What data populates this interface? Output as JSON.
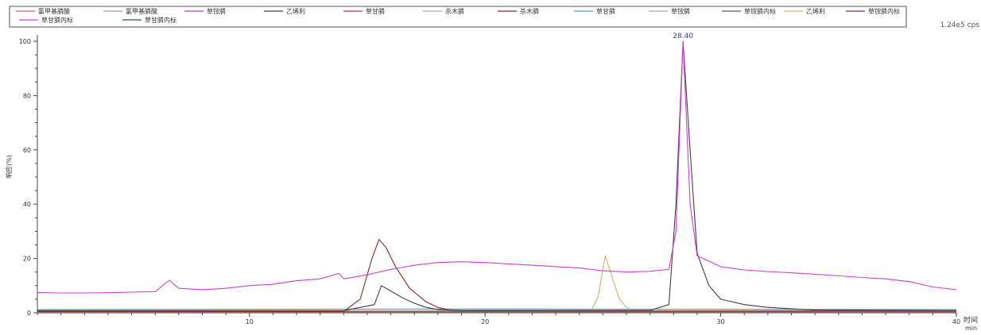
{
  "chart_data": {
    "type": "line",
    "title": "",
    "xlabel": "时间",
    "xunit": "min",
    "ylabel": "响应(%)",
    "scale_label": "1.24e5 cps",
    "xlim": [
      1,
      40
    ],
    "ylim": [
      0,
      100
    ],
    "x_ticks": [
      10,
      20,
      30,
      40
    ],
    "y_ticks": [
      0,
      20,
      40,
      60,
      80,
      100
    ],
    "grid": false,
    "legend_position": "top",
    "peak_annotation": {
      "x": 28.4,
      "y": 100,
      "label": "28.40"
    },
    "legend": [
      {
        "name": "氯甲基膦酸",
        "color": "#d46a6a"
      },
      {
        "name": "氯甲基膦酸",
        "color": "#8fa3a3"
      },
      {
        "name": "草铵膦",
        "color": "#b040b0"
      },
      {
        "name": "乙烯利",
        "color": "#404040"
      },
      {
        "name": "草甘膦",
        "color": "#b03060"
      },
      {
        "name": "杀木膦",
        "color": "#a0b0b0"
      },
      {
        "name": "杀木膦",
        "color": "#8b2a2a"
      },
      {
        "name": "草甘膦",
        "color": "#4aa3c8"
      },
      {
        "name": "草铵膦",
        "color": "#9aa6b4"
      },
      {
        "name": "草铵膦内标",
        "color": "#5a5a7a"
      },
      {
        "name": "乙烯利",
        "color": "#d4b060"
      },
      {
        "name": "草铵膦内标",
        "color": "#7a2a5a"
      },
      {
        "name": "草甘膦内标",
        "color": "#d040d0"
      },
      {
        "name": "草甘膦内标",
        "color": "#2f5a3a"
      }
    ],
    "series": [
      {
        "name": "草甘膦内标",
        "color": "#d040d0",
        "x": [
          1,
          2,
          3,
          4,
          5,
          6,
          6.6,
          7,
          8,
          9,
          10,
          11,
          12,
          13,
          13.8,
          14,
          15,
          16,
          17,
          18,
          19,
          20,
          21,
          22,
          23,
          24,
          25,
          26,
          27,
          27.8,
          28.1,
          28.4,
          28.7,
          29,
          30,
          31,
          32,
          33,
          34,
          35,
          36,
          37,
          38,
          39,
          40
        ],
        "y": [
          7.5,
          7.3,
          7.3,
          7.4,
          7.6,
          7.8,
          12,
          9,
          8.5,
          9,
          10,
          10.5,
          11.8,
          12.5,
          14.5,
          12.5,
          14,
          16,
          17.5,
          18.5,
          18.8,
          18.5,
          18,
          17.5,
          17,
          16.5,
          15.5,
          15,
          15.3,
          16,
          30,
          100,
          40,
          21,
          17,
          15.8,
          15.2,
          14.7,
          14.2,
          13.6,
          13,
          12.5,
          11.5,
          9.5,
          8.5
        ]
      },
      {
        "name": "乙烯利",
        "color": "#404040",
        "x": [
          1,
          14,
          15.3,
          15.6,
          16,
          16.5,
          17,
          17.5,
          18,
          18.5,
          19,
          20,
          22,
          24,
          27,
          27.8,
          28.1,
          28.4,
          28.7,
          29,
          29.5,
          30,
          31,
          32,
          33,
          34,
          40
        ],
        "y": [
          0.8,
          0.8,
          3,
          10,
          8,
          5.5,
          3.5,
          2,
          1.2,
          1,
          0.9,
          0.9,
          0.9,
          0.9,
          0.9,
          3,
          40,
          100,
          60,
          22,
          10,
          5,
          3,
          2,
          1.5,
          1,
          0.8
        ]
      },
      {
        "name": "杀木膦",
        "color": "#8b2a2a",
        "x": [
          1,
          14,
          14.7,
          15.2,
          15.5,
          15.8,
          16.2,
          16.8,
          17.5,
          18,
          18.5,
          19,
          20,
          40
        ],
        "y": [
          0.5,
          0.5,
          5,
          20,
          27,
          24,
          17,
          9,
          4,
          2,
          1,
          0.8,
          0.7,
          0.6
        ]
      },
      {
        "name": "乙烯利",
        "color": "#d4b060",
        "x": [
          1,
          24.5,
          24.8,
          25.1,
          25.4,
          25.7,
          26,
          26.3,
          40
        ],
        "y": [
          0.8,
          0.8,
          6,
          21,
          13,
          5,
          2,
          0.8,
          0.8
        ]
      },
      {
        "name": "草甘膦",
        "color": "#4aa3c8",
        "x": [
          1,
          20,
          40
        ],
        "y": [
          1.2,
          1.4,
          1.2
        ]
      },
      {
        "name": "氯甲基膦酸",
        "color": "#d46a6a",
        "x": [
          1,
          40
        ],
        "y": [
          0.3,
          0.3
        ]
      },
      {
        "name": "草甘膦",
        "color": "#b03060",
        "x": [
          1,
          40
        ],
        "y": [
          0.2,
          0.2
        ]
      },
      {
        "name": "草甘膦内标",
        "color": "#2f5a3a",
        "x": [
          1,
          40
        ],
        "y": [
          0.6,
          0.6
        ]
      }
    ]
  }
}
